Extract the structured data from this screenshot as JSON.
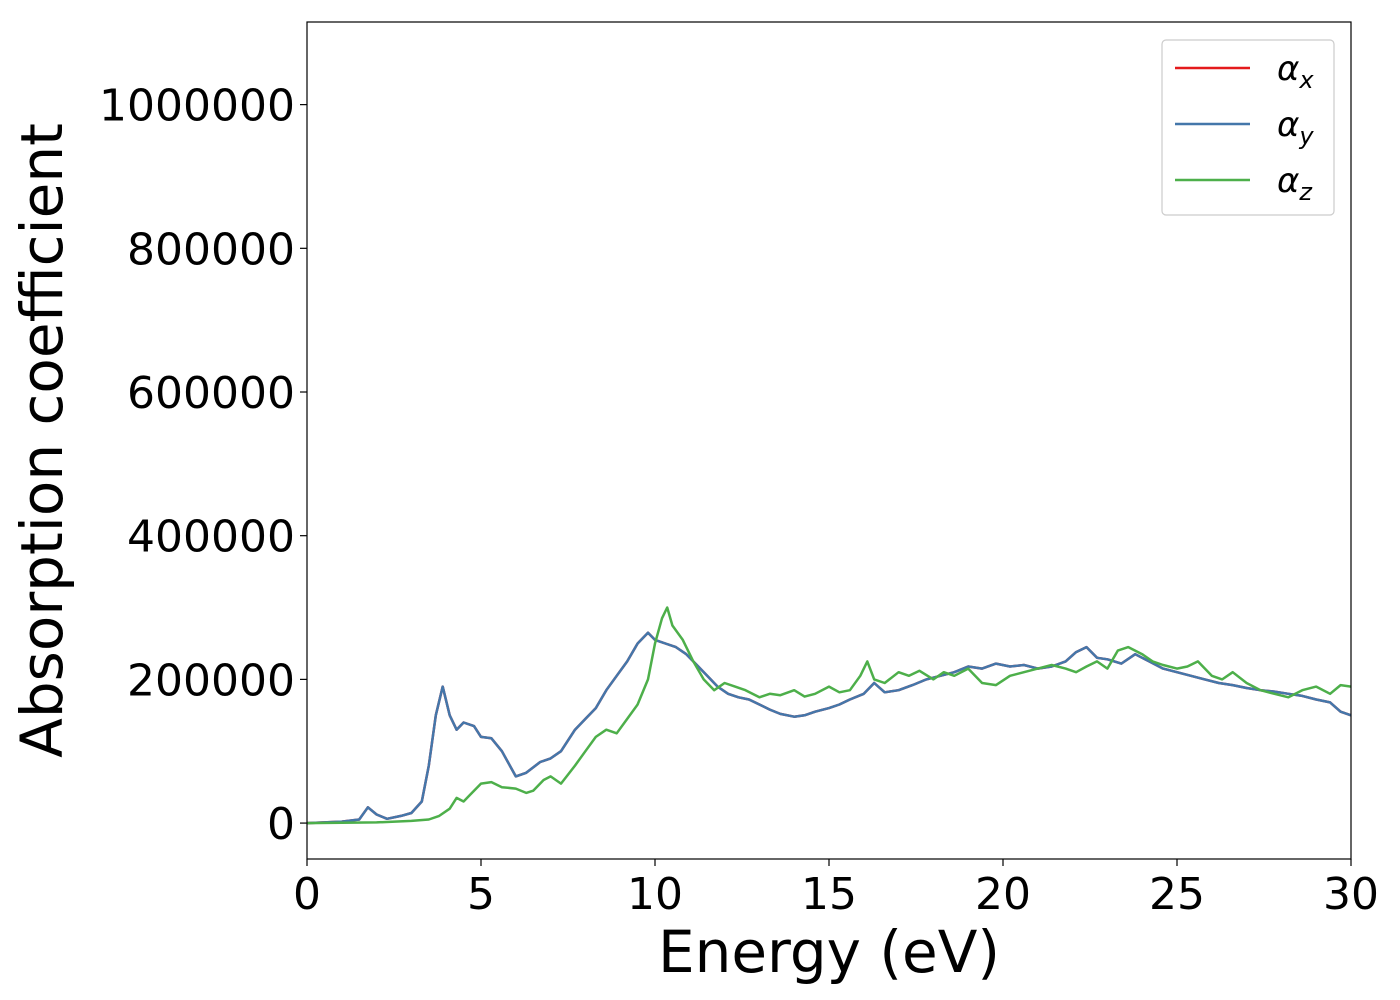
{
  "chart_data": {
    "type": "line",
    "title": "",
    "xlabel": "Energy (eV)",
    "ylabel": "Absorption coefficient",
    "xlim": [
      0,
      30
    ],
    "ylim": [
      -50000,
      1115000
    ],
    "xticks": [
      0,
      5,
      10,
      15,
      20,
      25,
      30
    ],
    "xtick_labels": [
      "0",
      "5",
      "10",
      "15",
      "20",
      "25",
      "30"
    ],
    "yticks": [
      0,
      200000,
      400000,
      600000,
      800000,
      1000000
    ],
    "ytick_labels": [
      "0",
      "200000",
      "400000",
      "600000",
      "800000",
      "1000000"
    ],
    "grid": false,
    "legend_position": "top-right",
    "series": [
      {
        "name": "α",
        "subscript": "x",
        "color": "#e41a1c",
        "x": [
          0,
          1,
          1.5,
          1.75,
          2,
          2.3,
          2.7,
          3,
          3.3,
          3.5,
          3.7,
          3.9,
          4.1,
          4.3,
          4.5,
          4.8,
          5,
          5.3,
          5.6,
          6,
          6.3,
          6.7,
          7,
          7.3,
          7.7,
          8,
          8.3,
          8.6,
          8.9,
          9.2,
          9.5,
          9.8,
          10,
          10.3,
          10.6,
          10.9,
          11.2,
          11.5,
          11.8,
          12.1,
          12.4,
          12.7,
          13,
          13.3,
          13.6,
          14,
          14.3,
          14.6,
          15,
          15.3,
          15.6,
          16,
          16.3,
          16.6,
          17,
          17.4,
          17.8,
          18.2,
          18.6,
          19,
          19.4,
          19.8,
          20.2,
          20.6,
          21,
          21.4,
          21.8,
          22.1,
          22.4,
          22.7,
          23,
          23.4,
          23.8,
          24.2,
          24.6,
          25,
          25.4,
          25.8,
          26.2,
          26.6,
          27,
          27.4,
          27.8,
          28.2,
          28.6,
          29,
          29.4,
          29.7,
          30
        ],
        "y": [
          0,
          2000,
          5000,
          22000,
          12000,
          6000,
          10000,
          14000,
          30000,
          80000,
          150000,
          190000,
          150000,
          130000,
          140000,
          135000,
          120000,
          118000,
          100000,
          65000,
          70000,
          85000,
          90000,
          100000,
          130000,
          145000,
          160000,
          185000,
          205000,
          225000,
          250000,
          265000,
          255000,
          250000,
          245000,
          235000,
          220000,
          205000,
          190000,
          180000,
          175000,
          172000,
          165000,
          158000,
          152000,
          148000,
          150000,
          155000,
          160000,
          165000,
          172000,
          180000,
          195000,
          182000,
          185000,
          192000,
          200000,
          205000,
          210000,
          218000,
          215000,
          222000,
          218000,
          220000,
          215000,
          218000,
          225000,
          238000,
          245000,
          230000,
          228000,
          222000,
          235000,
          225000,
          215000,
          210000,
          205000,
          200000,
          195000,
          192000,
          188000,
          185000,
          183000,
          180000,
          177000,
          172000,
          168000,
          155000,
          150000
        ]
      },
      {
        "name": "α",
        "subscript": "y",
        "color": "#4477aa",
        "x": [
          0,
          1,
          1.5,
          1.75,
          2,
          2.3,
          2.7,
          3,
          3.3,
          3.5,
          3.7,
          3.9,
          4.1,
          4.3,
          4.5,
          4.8,
          5,
          5.3,
          5.6,
          6,
          6.3,
          6.7,
          7,
          7.3,
          7.7,
          8,
          8.3,
          8.6,
          8.9,
          9.2,
          9.5,
          9.8,
          10,
          10.3,
          10.6,
          10.9,
          11.2,
          11.5,
          11.8,
          12.1,
          12.4,
          12.7,
          13,
          13.3,
          13.6,
          14,
          14.3,
          14.6,
          15,
          15.3,
          15.6,
          16,
          16.3,
          16.6,
          17,
          17.4,
          17.8,
          18.2,
          18.6,
          19,
          19.4,
          19.8,
          20.2,
          20.6,
          21,
          21.4,
          21.8,
          22.1,
          22.4,
          22.7,
          23,
          23.4,
          23.8,
          24.2,
          24.6,
          25,
          25.4,
          25.8,
          26.2,
          26.6,
          27,
          27.4,
          27.8,
          28.2,
          28.6,
          29,
          29.4,
          29.7,
          30
        ],
        "y": [
          0,
          2000,
          5000,
          22000,
          12000,
          6000,
          10000,
          14000,
          30000,
          80000,
          150000,
          190000,
          150000,
          130000,
          140000,
          135000,
          120000,
          118000,
          100000,
          65000,
          70000,
          85000,
          90000,
          100000,
          130000,
          145000,
          160000,
          185000,
          205000,
          225000,
          250000,
          265000,
          255000,
          250000,
          245000,
          235000,
          220000,
          205000,
          190000,
          180000,
          175000,
          172000,
          165000,
          158000,
          152000,
          148000,
          150000,
          155000,
          160000,
          165000,
          172000,
          180000,
          195000,
          182000,
          185000,
          192000,
          200000,
          205000,
          210000,
          218000,
          215000,
          222000,
          218000,
          220000,
          215000,
          218000,
          225000,
          238000,
          245000,
          230000,
          228000,
          222000,
          235000,
          225000,
          215000,
          210000,
          205000,
          200000,
          195000,
          192000,
          188000,
          185000,
          183000,
          180000,
          177000,
          172000,
          168000,
          155000,
          150000
        ]
      },
      {
        "name": "α",
        "subscript": "z",
        "color": "#4daf4a",
        "x": [
          0,
          1,
          2,
          3,
          3.5,
          3.8,
          4.1,
          4.3,
          4.5,
          4.7,
          5,
          5.3,
          5.6,
          6,
          6.3,
          6.5,
          6.8,
          7,
          7.3,
          7.7,
          8,
          8.3,
          8.6,
          8.9,
          9.2,
          9.5,
          9.8,
          10,
          10.2,
          10.35,
          10.5,
          10.8,
          11.1,
          11.4,
          11.7,
          12,
          12.3,
          12.6,
          13,
          13.3,
          13.6,
          14,
          14.3,
          14.6,
          15,
          15.3,
          15.6,
          15.9,
          16.1,
          16.3,
          16.6,
          17,
          17.3,
          17.6,
          18,
          18.3,
          18.6,
          19,
          19.4,
          19.8,
          20.2,
          20.6,
          21,
          21.4,
          21.8,
          22.1,
          22.4,
          22.7,
          23,
          23.3,
          23.6,
          24,
          24.3,
          24.6,
          25,
          25.3,
          25.6,
          26,
          26.3,
          26.6,
          27,
          27.4,
          27.8,
          28.2,
          28.6,
          29,
          29.4,
          29.7,
          30
        ],
        "y": [
          0,
          500,
          1000,
          3000,
          5000,
          10000,
          20000,
          35000,
          30000,
          40000,
          55000,
          57000,
          50000,
          48000,
          42000,
          45000,
          60000,
          65000,
          55000,
          80000,
          100000,
          120000,
          130000,
          125000,
          145000,
          165000,
          200000,
          250000,
          285000,
          300000,
          275000,
          255000,
          225000,
          200000,
          185000,
          195000,
          190000,
          185000,
          175000,
          180000,
          178000,
          185000,
          176000,
          180000,
          190000,
          182000,
          185000,
          205000,
          225000,
          200000,
          195000,
          210000,
          205000,
          212000,
          200000,
          210000,
          205000,
          215000,
          195000,
          192000,
          205000,
          210000,
          215000,
          220000,
          215000,
          210000,
          218000,
          225000,
          215000,
          240000,
          245000,
          235000,
          225000,
          220000,
          215000,
          218000,
          225000,
          205000,
          200000,
          210000,
          195000,
          185000,
          180000,
          175000,
          185000,
          190000,
          180000,
          192000,
          190000
        ]
      }
    ]
  }
}
